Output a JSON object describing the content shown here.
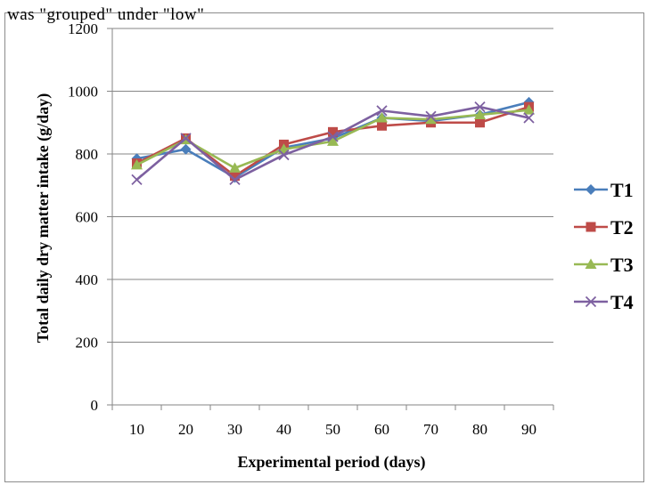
{
  "header_fragment": "was \"grouped\" under \"low\"",
  "chart_data": {
    "type": "line",
    "xlabel": "Experimental period (days)",
    "ylabel": "Total daily dry matter intake (g/day)",
    "categories": [
      "10",
      "20",
      "30",
      "40",
      "50",
      "60",
      "70",
      "80",
      "90"
    ],
    "ylim": [
      0,
      1200
    ],
    "yticks": [
      0,
      200,
      400,
      600,
      800,
      1000,
      1200
    ],
    "grid": "horizontal",
    "legend_position": "right",
    "series": [
      {
        "name": "T1",
        "color": "#4a7ebb",
        "marker": "diamond",
        "values": [
          785,
          815,
          725,
          820,
          850,
          915,
          905,
          925,
          965
        ]
      },
      {
        "name": "T2",
        "color": "#be4b48",
        "marker": "square",
        "values": [
          770,
          850,
          730,
          830,
          870,
          890,
          900,
          900,
          950
        ]
      },
      {
        "name": "T3",
        "color": "#98b954",
        "marker": "triangle",
        "values": [
          765,
          845,
          755,
          815,
          840,
          915,
          910,
          925,
          940
        ]
      },
      {
        "name": "T4",
        "color": "#7d60a0",
        "marker": "x",
        "values": [
          718,
          850,
          718,
          797,
          855,
          938,
          920,
          950,
          915
        ]
      }
    ]
  }
}
